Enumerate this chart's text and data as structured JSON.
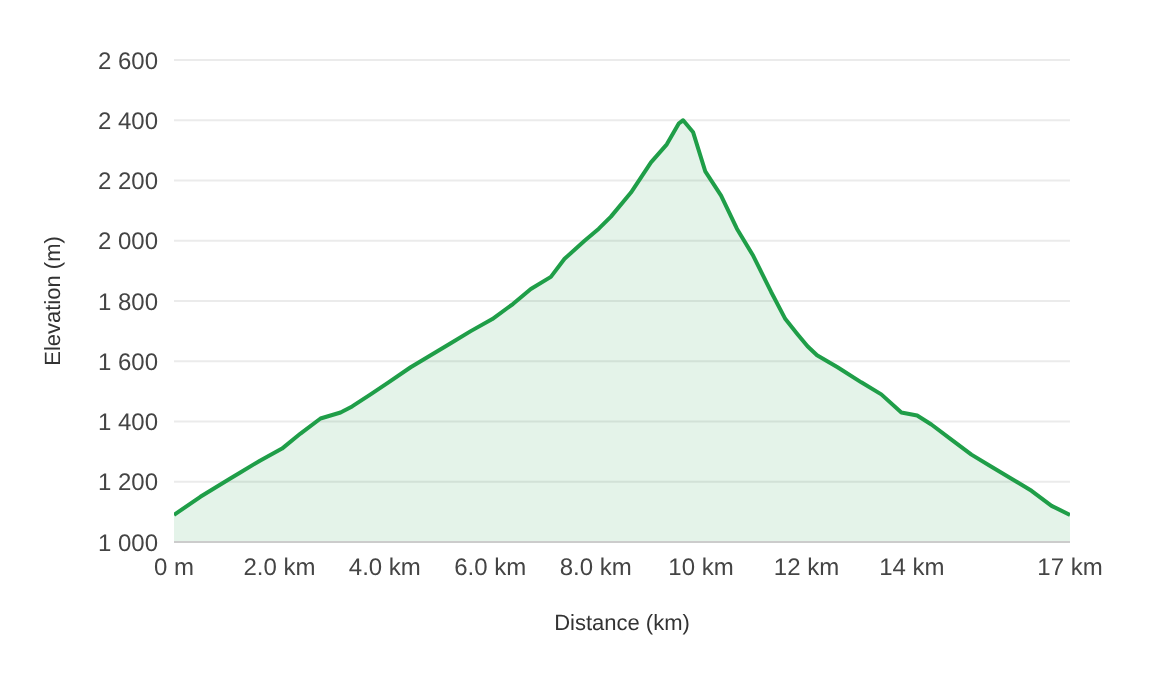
{
  "chart_data": {
    "type": "area",
    "xlabel": "Distance (km)",
    "ylabel": "Elevation (m)",
    "x": [
      0,
      0.5,
      1.06,
      1.25,
      1.63,
      2.05,
      2.4,
      2.78,
      3.16,
      3.38,
      3.73,
      4.07,
      4.49,
      4.87,
      5.25,
      5.63,
      6.04,
      6.43,
      6.77,
      7.15,
      7.41,
      7.79,
      8.06,
      8.29,
      8.67,
      9.05,
      9.35,
      9.58,
      9.66,
      9.85,
      10.08,
      10.38,
      10.68,
      10.99,
      11.33,
      11.6,
      11.83,
      12.02,
      12.2,
      12.59,
      13.04,
      13.42,
      13.8,
      14.1,
      14.37,
      14.75,
      15.13,
      15.51,
      15.89,
      16.27,
      16.65,
      17
    ],
    "series": [
      {
        "color": "#1f9e48",
        "values": [
          1090,
          1150,
          1210,
          1230,
          1270,
          1310,
          1360,
          1410,
          1430,
          1450,
          1490,
          1530,
          1580,
          1620,
          1660,
          1700,
          1740,
          1790,
          1840,
          1880,
          1940,
          2000,
          2040,
          2080,
          2160,
          2260,
          2320,
          2390,
          2400,
          2360,
          2230,
          2150,
          2040,
          1950,
          1830,
          1740,
          1690,
          1650,
          1620,
          1580,
          1530,
          1490,
          1430,
          1420,
          1390,
          1340,
          1290,
          1250,
          1210,
          1170,
          1120,
          1090
        ]
      }
    ],
    "xlim": [
      0,
      17
    ],
    "xticks": [
      {
        "value": 0,
        "label": "0 m"
      },
      {
        "value": 2,
        "label": "2.0 km"
      },
      {
        "value": 4,
        "label": "4.0 km"
      },
      {
        "value": 6,
        "label": "6.0 km"
      },
      {
        "value": 8,
        "label": "8.0 km"
      },
      {
        "value": 10,
        "label": "10 km"
      },
      {
        "value": 12,
        "label": "12 km"
      },
      {
        "value": 14,
        "label": "14 km"
      },
      {
        "value": 17,
        "label": "17 km"
      }
    ],
    "ylim": [
      1000,
      2600
    ],
    "yticks": [
      {
        "value": 1000,
        "label": "1 000"
      },
      {
        "value": 1200,
        "label": "1 200"
      },
      {
        "value": 1400,
        "label": "1 400"
      },
      {
        "value": 1600,
        "label": "1 600"
      },
      {
        "value": 1800,
        "label": "1 800"
      },
      {
        "value": 2000,
        "label": "2 000"
      },
      {
        "value": 2200,
        "label": "2 200"
      },
      {
        "value": 2400,
        "label": "2 400"
      },
      {
        "value": 2600,
        "label": "2 600"
      }
    ],
    "grid": "y",
    "legend": false
  }
}
